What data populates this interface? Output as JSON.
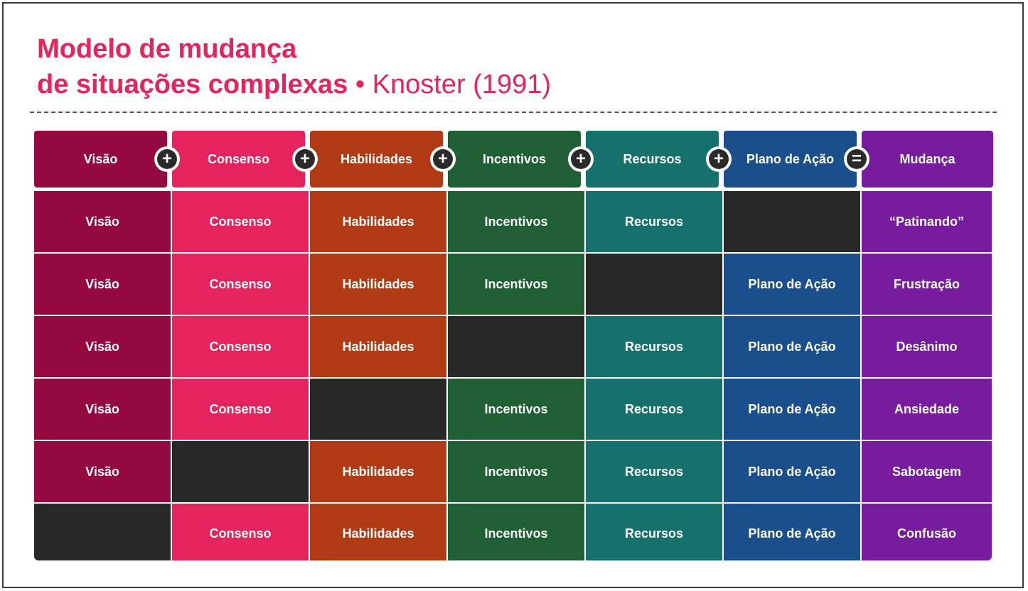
{
  "title": {
    "line1": "Modelo de mudança",
    "line2_bold": "de situações complexas",
    "line2_light": " • Knoster (1991)"
  },
  "colors": {
    "visao": "#93093f",
    "consenso": "#e4245c",
    "habilidades": "#b03a14",
    "incentivos": "#1e6033",
    "recursos": "#16706c",
    "plano": "#1b4f8c",
    "mudanca": "#761c9c",
    "empty": "#282828"
  },
  "header": {
    "items": [
      "Visão",
      "Consenso",
      "Habilidades",
      "Incentivos",
      "Recursos",
      "Plano de Ação",
      "Mudança"
    ],
    "operators": [
      "+",
      "+",
      "+",
      "+",
      "+",
      "="
    ]
  },
  "rows": [
    [
      "Visão",
      "Consenso",
      "Habilidades",
      "Incentivos",
      "Recursos",
      "",
      "“Patinando”"
    ],
    [
      "Visão",
      "Consenso",
      "Habilidades",
      "Incentivos",
      "",
      "Plano de Ação",
      "Frustração"
    ],
    [
      "Visão",
      "Consenso",
      "Habilidades",
      "",
      "Recursos",
      "Plano de Ação",
      "Desânimo"
    ],
    [
      "Visão",
      "Consenso",
      "",
      "Incentivos",
      "Recursos",
      "Plano de Ação",
      "Ansiedade"
    ],
    [
      "Visão",
      "",
      "Habilidades",
      "Incentivos",
      "Recursos",
      "Plano de Ação",
      "Sabotagem"
    ],
    [
      "",
      "Consenso",
      "Habilidades",
      "Incentivos",
      "Recursos",
      "Plano de Ação",
      "Confusão"
    ]
  ]
}
